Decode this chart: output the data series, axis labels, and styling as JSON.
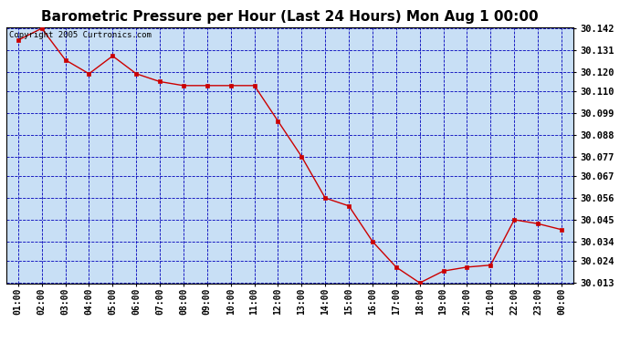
{
  "title": "Barometric Pressure per Hour (Last 24 Hours) Mon Aug 1 00:00",
  "copyright": "Copyright 2005 Curtronics.com",
  "x_labels": [
    "01:00",
    "02:00",
    "03:00",
    "04:00",
    "05:00",
    "06:00",
    "07:00",
    "08:00",
    "09:00",
    "10:00",
    "11:00",
    "12:00",
    "13:00",
    "14:00",
    "15:00",
    "16:00",
    "17:00",
    "18:00",
    "19:00",
    "20:00",
    "21:00",
    "22:00",
    "23:00",
    "00:00"
  ],
  "y_values": [
    30.136,
    30.142,
    30.126,
    30.119,
    30.128,
    30.119,
    30.115,
    30.113,
    30.113,
    30.113,
    30.113,
    30.095,
    30.077,
    30.056,
    30.052,
    30.034,
    30.021,
    30.013,
    30.019,
    30.021,
    30.022,
    30.045,
    30.043,
    30.04
  ],
  "ylim_min": 30.013,
  "ylim_max": 30.142,
  "yticks": [
    30.013,
    30.024,
    30.034,
    30.045,
    30.056,
    30.067,
    30.077,
    30.088,
    30.099,
    30.11,
    30.12,
    30.131,
    30.142
  ],
  "line_color": "#cc0000",
  "marker_color": "#cc0000",
  "bg_color": "#c8dff5",
  "grid_color": "#0000bb",
  "title_fontsize": 11,
  "copyright_fontsize": 6.5,
  "tick_fontsize": 7,
  "ytick_fontsize": 7.5
}
